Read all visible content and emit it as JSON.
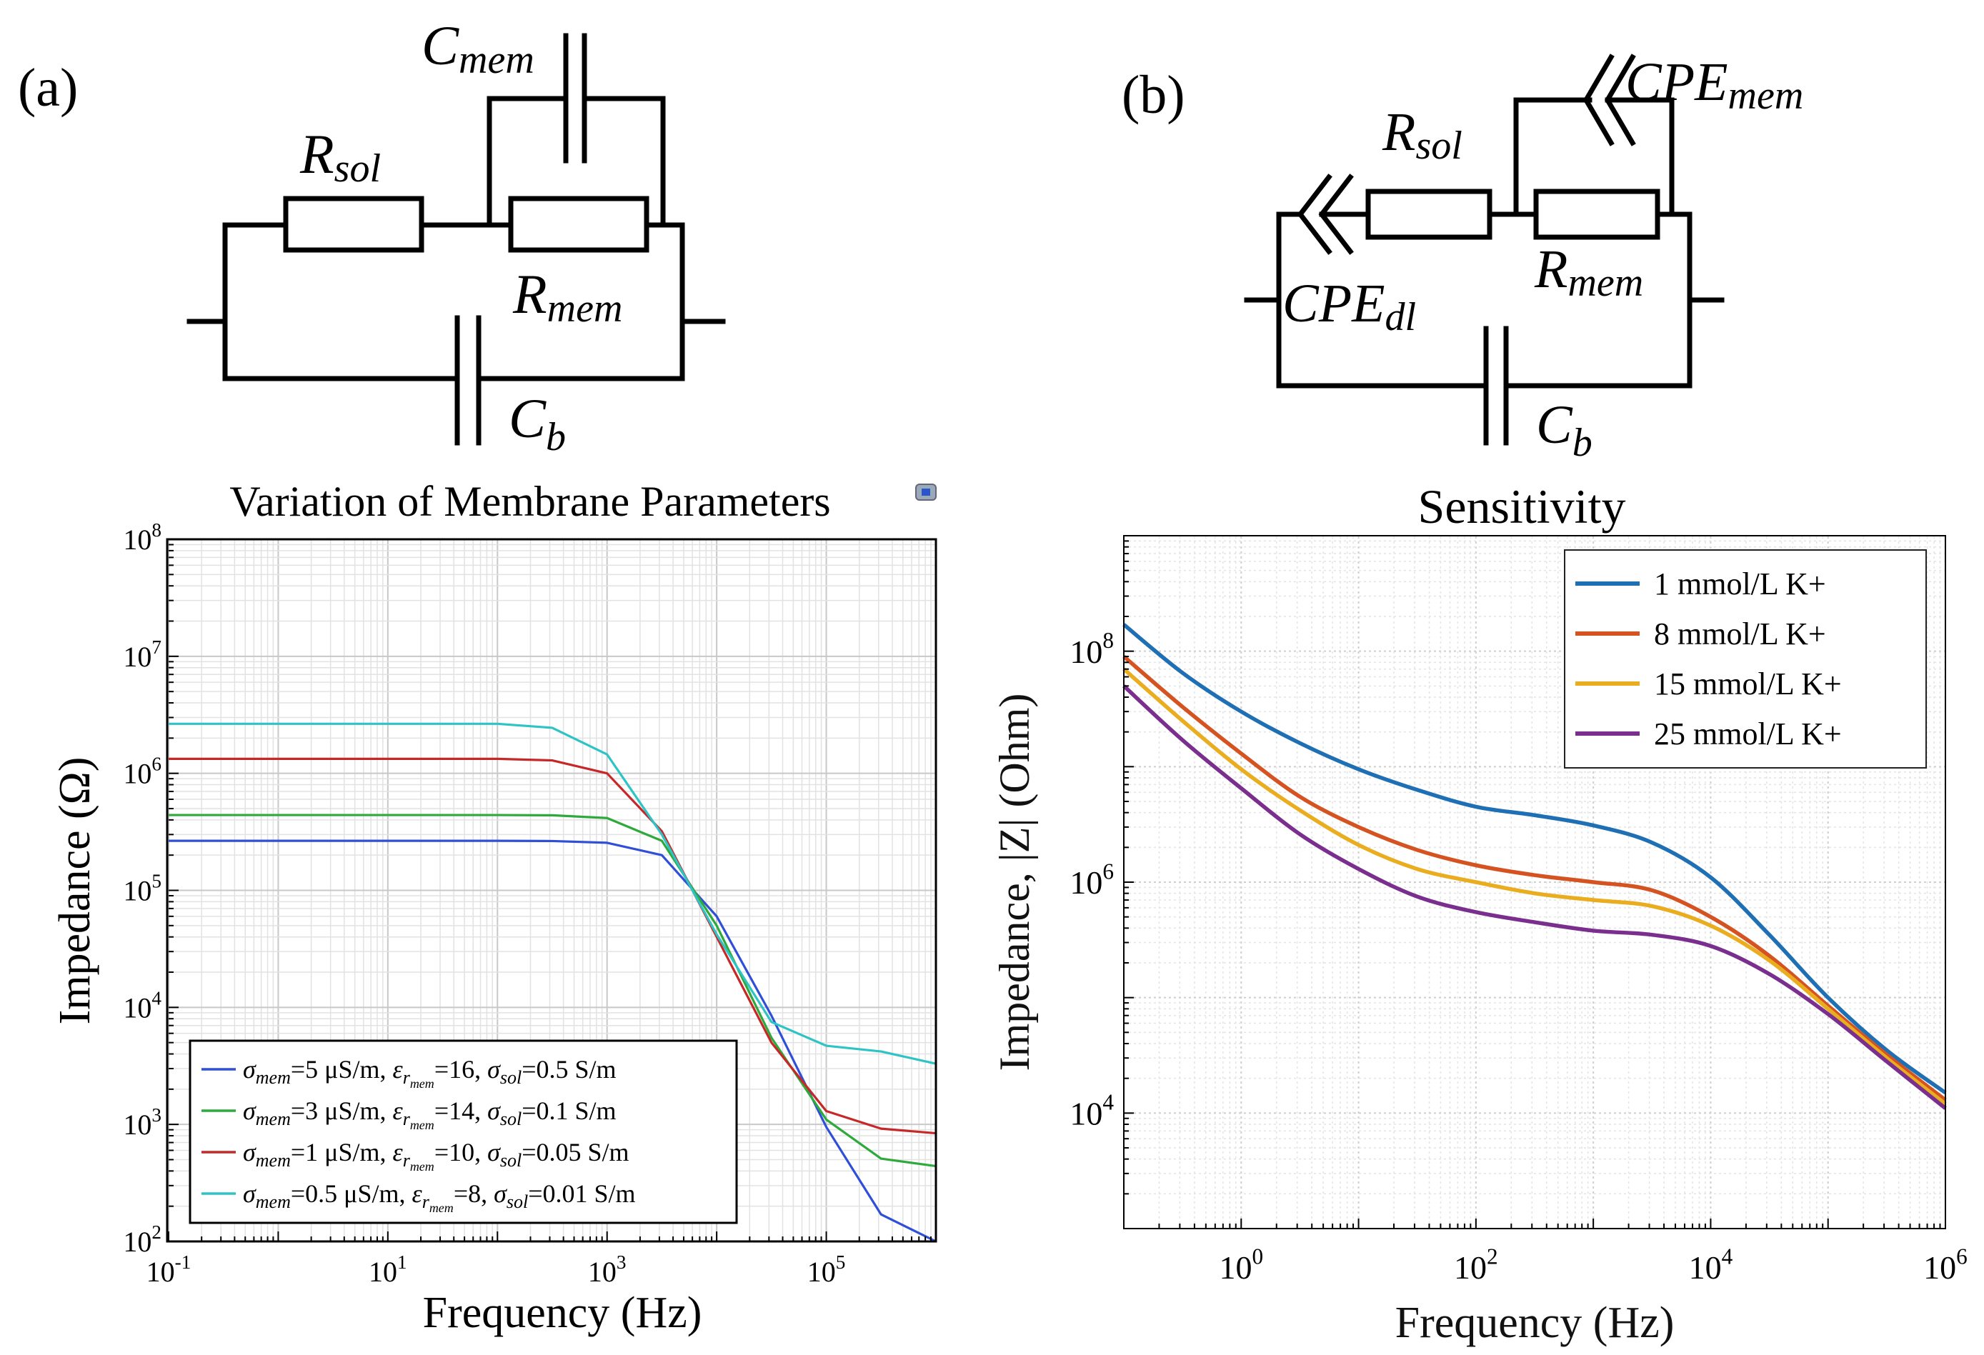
{
  "panel_a": {
    "label": "(a)",
    "circuit": {
      "c_mem": {
        "base": "C",
        "sub": "mem"
      },
      "r_sol": {
        "base": "R",
        "sub": "sol"
      },
      "r_mem": {
        "base": "R",
        "sub": "mem"
      },
      "c_b": {
        "base": "C",
        "sub": "b"
      }
    }
  },
  "panel_b": {
    "label": "(b)",
    "circuit": {
      "cpe_mem": {
        "base": "CPE",
        "sub": "mem"
      },
      "r_sol": {
        "base": "R",
        "sub": "sol"
      },
      "r_mem": {
        "base": "R",
        "sub": "mem"
      },
      "cpe_dl": {
        "base": "CPE",
        "sub": "dl"
      },
      "c_b": {
        "base": "C",
        "sub": "b"
      }
    }
  },
  "chart_data": [
    {
      "id": "chart-a",
      "type": "line",
      "title": "Variation of Membrane Parameters",
      "xlabel": "Frequency (Hz)",
      "ylabel": "Impedance (Ω)",
      "xscale": "log",
      "yscale": "log",
      "xlim": [
        0.1,
        1000000
      ],
      "ylim": [
        100,
        100000000
      ],
      "grid": true,
      "legend_position": "bottom-left",
      "xticks": [
        {
          "value": 0.1,
          "base": "10",
          "exp": "-1"
        },
        {
          "value": 10,
          "base": "10",
          "exp": "1"
        },
        {
          "value": 1000,
          "base": "10",
          "exp": "3"
        },
        {
          "value": 100000,
          "base": "10",
          "exp": "5"
        }
      ],
      "yticks": [
        {
          "value": 100,
          "base": "10",
          "exp": "2"
        },
        {
          "value": 1000,
          "base": "10",
          "exp": "3"
        },
        {
          "value": 10000,
          "base": "10",
          "exp": "4"
        },
        {
          "value": 100000,
          "base": "10",
          "exp": "5"
        },
        {
          "value": 1000000,
          "base": "10",
          "exp": "6"
        },
        {
          "value": 10000000,
          "base": "10",
          "exp": "7"
        },
        {
          "value": 100000000,
          "base": "10",
          "exp": "8"
        }
      ],
      "series": [
        {
          "name": "σmem=5 μS/m, εrmem=16, σsol=0.5 S/m",
          "legend": {
            "sigma_mem": "=5 μS/m, ",
            "eps_r_mem": "=16, ",
            "sigma_sol": "=0.5 S/m"
          },
          "color": "#2f4fd8",
          "x": [
            0.1,
            100,
            316,
            1000,
            3160,
            10000,
            31600,
            100000,
            316000,
            1000000
          ],
          "y": [
            265000,
            265000,
            264000,
            255000,
            200000,
            60000,
            8500,
            950,
            170,
            100
          ]
        },
        {
          "name": "σmem=3 μS/m, εrmem=14, σsol=0.1 S/m",
          "legend": {
            "sigma_mem": "=3 μS/m, ",
            "eps_r_mem": "=14, ",
            "sigma_sol": "=0.1 S/m"
          },
          "color": "#2eaa3c",
          "x": [
            0.1,
            100,
            316,
            1000,
            3160,
            10000,
            31600,
            100000,
            316000,
            1000000
          ],
          "y": [
            440000,
            440000,
            438000,
            415000,
            265000,
            50000,
            5500,
            1100,
            510,
            440
          ]
        },
        {
          "name": "σmem=1 μS/m, εrmem=10, σsol=0.05 S/m",
          "legend": {
            "sigma_mem": "=1 μS/m, ",
            "eps_r_mem": "=10, ",
            "sigma_sol": "=0.05 S/m"
          },
          "color": "#c62828",
          "x": [
            0.1,
            100,
            316,
            1000,
            3160,
            10000,
            31600,
            100000,
            316000,
            1000000
          ],
          "y": [
            1330000,
            1330000,
            1290000,
            1000000,
            320000,
            40000,
            5000,
            1300,
            920,
            840
          ]
        },
        {
          "name": "σmem=0.5 μS/m, εrmem=8, σsol=0.01 S/m",
          "legend": {
            "sigma_mem": "=0.5 μS/m, ",
            "eps_r_mem": "=8, ",
            "sigma_sol": "=0.01 S/m"
          },
          "color": "#2ec4c6",
          "x": [
            0.1,
            100,
            316,
            1000,
            3160,
            10000,
            31600,
            100000,
            316000,
            1000000
          ],
          "y": [
            2650000,
            2650000,
            2450000,
            1450000,
            300000,
            42000,
            7500,
            4700,
            4200,
            3300
          ]
        }
      ]
    },
    {
      "id": "chart-b",
      "type": "line",
      "title": "Sensitivity",
      "xlabel": "Frequency (Hz)",
      "ylabel": "Impedance, |Z| (Ohm)",
      "xscale": "log",
      "yscale": "log",
      "xlim": [
        0.1,
        1000000
      ],
      "ylim": [
        1000,
        1000000000
      ],
      "grid": true,
      "legend_position": "top-right",
      "xticks": [
        {
          "value": 1,
          "base": "10",
          "exp": "0"
        },
        {
          "value": 100,
          "base": "10",
          "exp": "2"
        },
        {
          "value": 10000,
          "base": "10",
          "exp": "4"
        },
        {
          "value": 1000000,
          "base": "10",
          "exp": "6"
        }
      ],
      "yticks": [
        {
          "value": 10000,
          "base": "10",
          "exp": "4"
        },
        {
          "value": 1000000,
          "base": "10",
          "exp": "6"
        },
        {
          "value": 100000000,
          "base": "10",
          "exp": "8"
        }
      ],
      "series": [
        {
          "name": "1 mmol/L K+",
          "color": "#1f6fb4",
          "x": [
            0.1,
            0.316,
            1,
            3.16,
            10,
            31.6,
            100,
            316,
            1000,
            3160,
            10000,
            31600,
            100000,
            316000,
            1000000
          ],
          "y": [
            170000000,
            65000000,
            30000000,
            16000000,
            9500000,
            6300000,
            4500000,
            3800000,
            3100000,
            2200000,
            1100000,
            350000,
            100000,
            35000,
            15000
          ]
        },
        {
          "name": "8 mmol/L K+",
          "color": "#d55320",
          "x": [
            0.1,
            0.316,
            1,
            3.16,
            10,
            31.6,
            100,
            316,
            1000,
            3160,
            10000,
            31600,
            100000,
            316000,
            1000000
          ],
          "y": [
            90000000,
            33000000,
            13000000,
            5500000,
            3000000,
            1900000,
            1400000,
            1150000,
            1000000,
            850000,
            500000,
            230000,
            85000,
            32000,
            13000
          ]
        },
        {
          "name": "15 mmol/L K+",
          "color": "#e9ad1f",
          "x": [
            0.1,
            0.316,
            1,
            3.16,
            10,
            31.6,
            100,
            316,
            1000,
            3160,
            10000,
            31600,
            100000,
            316000,
            1000000
          ],
          "y": [
            70000000,
            25000000,
            9500000,
            4200000,
            2100000,
            1300000,
            1000000,
            800000,
            700000,
            620000,
            420000,
            210000,
            80000,
            30000,
            12000
          ]
        },
        {
          "name": "25 mmol/L K+",
          "color": "#7a2e8e",
          "x": [
            0.1,
            0.316,
            1,
            3.16,
            10,
            31.6,
            100,
            316,
            1000,
            3160,
            10000,
            31600,
            100000,
            316000,
            1000000
          ],
          "y": [
            50000000,
            17000000,
            6500000,
            2600000,
            1300000,
            750000,
            550000,
            450000,
            380000,
            350000,
            280000,
            160000,
            72000,
            28000,
            11000
          ]
        }
      ]
    }
  ]
}
